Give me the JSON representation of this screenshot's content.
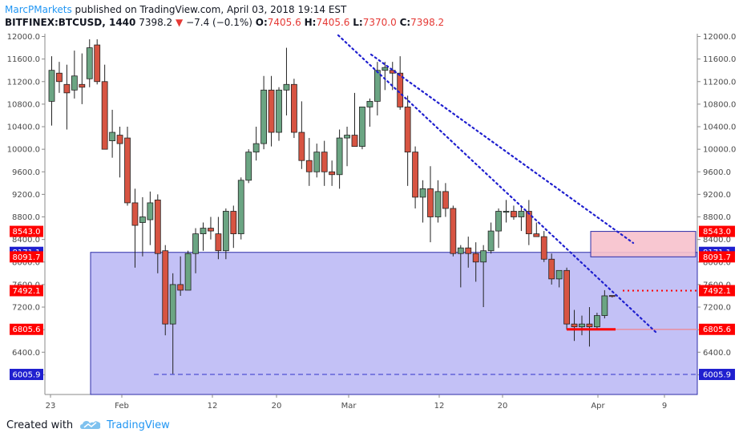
{
  "header": {
    "author": "MarcPMarkets",
    "published_text": "published on TradingView.com, April 03, 2018 19:14 EST",
    "symbol": "BITFINEX:BTCUSD, 1440",
    "last_price": "7398.2",
    "change": "−7.4 (−0.1%)",
    "o_label": "O:",
    "o_value": "7405.6",
    "h_label": "H:",
    "h_value": "7405.6",
    "l_label": "L:",
    "l_value": "7370.0",
    "c_label": "C:",
    "c_value": "7398.2"
  },
  "footer": {
    "created_with": "Created with",
    "brand": "TradingView"
  },
  "colors": {
    "up": "#6ba583",
    "down": "#d75442",
    "zone_fill": "#b8b6f5",
    "zone_border": "#2c2ca8",
    "trendline": "#1f1fcf",
    "resistance_fill": "#f7c1cc",
    "support": "#ff0000",
    "label_red": "#ff0000",
    "label_blue": "#1f1fcf"
  },
  "chart_data": {
    "type": "candlestick",
    "symbol": "BITFINEX:BTCUSD",
    "interval": "1440",
    "y_ticks": [
      "12000.0",
      "11600.0",
      "11200.0",
      "10800.0",
      "10400.0",
      "10000.0",
      "9600.0",
      "9200.0",
      "8800.0",
      "8400.0",
      "8000.0",
      "7600.0",
      "7200.0",
      "6800.0",
      "6400.0",
      "6000.0"
    ],
    "ylim": [
      5650,
      12050
    ],
    "x_tick_labels": [
      "23",
      "Feb",
      "12",
      "20",
      "Mar",
      "12",
      "20",
      "Apr",
      "9"
    ],
    "candles": [
      {
        "o": 10850,
        "h": 11650,
        "l": 10420,
        "c": 11400
      },
      {
        "o": 11350,
        "h": 11550,
        "l": 11000,
        "c": 11200
      },
      {
        "o": 11150,
        "h": 11500,
        "l": 10350,
        "c": 11000
      },
      {
        "o": 11050,
        "h": 11750,
        "l": 10900,
        "c": 11300
      },
      {
        "o": 11150,
        "h": 11700,
        "l": 10800,
        "c": 11100
      },
      {
        "o": 11250,
        "h": 11950,
        "l": 11100,
        "c": 11800
      },
      {
        "o": 11850,
        "h": 11950,
        "l": 11150,
        "c": 11200
      },
      {
        "o": 11200,
        "h": 11500,
        "l": 10000,
        "c": 10000
      },
      {
        "o": 10150,
        "h": 10700,
        "l": 9850,
        "c": 10300
      },
      {
        "o": 10250,
        "h": 10400,
        "l": 9500,
        "c": 10100
      },
      {
        "o": 10200,
        "h": 10400,
        "l": 9000,
        "c": 9050
      },
      {
        "o": 9050,
        "h": 9300,
        "l": 7900,
        "c": 8650
      },
      {
        "o": 8700,
        "h": 9150,
        "l": 8100,
        "c": 8800
      },
      {
        "o": 8750,
        "h": 9250,
        "l": 8300,
        "c": 9050
      },
      {
        "o": 9100,
        "h": 9200,
        "l": 7800,
        "c": 8150
      },
      {
        "o": 8200,
        "h": 8300,
        "l": 6700,
        "c": 6900
      },
      {
        "o": 6900,
        "h": 7800,
        "l": 6000,
        "c": 7600
      },
      {
        "o": 7600,
        "h": 8100,
        "l": 7400,
        "c": 7500
      },
      {
        "o": 7500,
        "h": 8200,
        "l": 7500,
        "c": 8150
      },
      {
        "o": 8150,
        "h": 8600,
        "l": 7800,
        "c": 8500
      },
      {
        "o": 8500,
        "h": 8700,
        "l": 8200,
        "c": 8600
      },
      {
        "o": 8600,
        "h": 8800,
        "l": 8400,
        "c": 8550
      },
      {
        "o": 8500,
        "h": 8800,
        "l": 8050,
        "c": 8200
      },
      {
        "o": 8200,
        "h": 8950,
        "l": 8050,
        "c": 8900
      },
      {
        "o": 8900,
        "h": 9000,
        "l": 8250,
        "c": 8500
      },
      {
        "o": 8500,
        "h": 9500,
        "l": 8400,
        "c": 9450
      },
      {
        "o": 9450,
        "h": 10000,
        "l": 9400,
        "c": 9950
      },
      {
        "o": 9950,
        "h": 10400,
        "l": 9800,
        "c": 10100
      },
      {
        "o": 10100,
        "h": 11300,
        "l": 10000,
        "c": 11050
      },
      {
        "o": 11050,
        "h": 11300,
        "l": 10050,
        "c": 10300
      },
      {
        "o": 10300,
        "h": 11100,
        "l": 10150,
        "c": 11050
      },
      {
        "o": 11050,
        "h": 11800,
        "l": 10600,
        "c": 11150
      },
      {
        "o": 11150,
        "h": 11250,
        "l": 10200,
        "c": 10300
      },
      {
        "o": 10300,
        "h": 10850,
        "l": 9650,
        "c": 9800
      },
      {
        "o": 9800,
        "h": 10200,
        "l": 9350,
        "c": 9600
      },
      {
        "o": 9600,
        "h": 10100,
        "l": 9500,
        "c": 9950
      },
      {
        "o": 9950,
        "h": 10150,
        "l": 9350,
        "c": 9600
      },
      {
        "o": 9600,
        "h": 9800,
        "l": 9350,
        "c": 9550
      },
      {
        "o": 9550,
        "h": 10350,
        "l": 9300,
        "c": 10200
      },
      {
        "o": 10200,
        "h": 10400,
        "l": 9700,
        "c": 10250
      },
      {
        "o": 10250,
        "h": 11000,
        "l": 10100,
        "c": 10050
      },
      {
        "o": 10050,
        "h": 10750,
        "l": 10000,
        "c": 10750
      },
      {
        "o": 10750,
        "h": 10900,
        "l": 10400,
        "c": 10850
      },
      {
        "o": 10850,
        "h": 11550,
        "l": 10600,
        "c": 11400
      },
      {
        "o": 11400,
        "h": 11550,
        "l": 11050,
        "c": 11450
      },
      {
        "o": 11400,
        "h": 11550,
        "l": 11050,
        "c": 11350
      },
      {
        "o": 11350,
        "h": 11650,
        "l": 10700,
        "c": 10750
      },
      {
        "o": 10750,
        "h": 10950,
        "l": 9350,
        "c": 9950
      },
      {
        "o": 9950,
        "h": 10050,
        "l": 8950,
        "c": 9150
      },
      {
        "o": 9150,
        "h": 9450,
        "l": 8700,
        "c": 9300
      },
      {
        "o": 9300,
        "h": 9700,
        "l": 8350,
        "c": 8800
      },
      {
        "o": 8800,
        "h": 9450,
        "l": 8700,
        "c": 9250
      },
      {
        "o": 9250,
        "h": 9400,
        "l": 8800,
        "c": 8950
      },
      {
        "o": 8950,
        "h": 9000,
        "l": 8100,
        "c": 8150
      },
      {
        "o": 8150,
        "h": 8300,
        "l": 7550,
        "c": 8250
      },
      {
        "o": 8250,
        "h": 8450,
        "l": 7900,
        "c": 8150
      },
      {
        "o": 8150,
        "h": 8350,
        "l": 7650,
        "c": 8000
      },
      {
        "o": 8000,
        "h": 8300,
        "l": 7200,
        "c": 8200
      },
      {
        "o": 8200,
        "h": 8700,
        "l": 8150,
        "c": 8550
      },
      {
        "o": 8550,
        "h": 8950,
        "l": 8250,
        "c": 8900
      },
      {
        "o": 8900,
        "h": 9100,
        "l": 8700,
        "c": 8900
      },
      {
        "o": 8900,
        "h": 9000,
        "l": 8750,
        "c": 8800
      },
      {
        "o": 8800,
        "h": 9000,
        "l": 8550,
        "c": 8900
      },
      {
        "o": 8900,
        "h": 9100,
        "l": 8300,
        "c": 8500
      },
      {
        "o": 8500,
        "h": 8700,
        "l": 8450,
        "c": 8450
      },
      {
        "o": 8450,
        "h": 8550,
        "l": 8000,
        "c": 8050
      },
      {
        "o": 8050,
        "h": 8150,
        "l": 7600,
        "c": 7700
      },
      {
        "o": 7700,
        "h": 7850,
        "l": 7550,
        "c": 7850
      },
      {
        "o": 7850,
        "h": 7900,
        "l": 6800,
        "c": 6900
      },
      {
        "o": 6900,
        "h": 7150,
        "l": 6600,
        "c": 6850
      },
      {
        "o": 6850,
        "h": 7050,
        "l": 6700,
        "c": 6900
      },
      {
        "o": 6900,
        "h": 7200,
        "l": 6500,
        "c": 6850
      },
      {
        "o": 6850,
        "h": 7100,
        "l": 6800,
        "c": 7050
      },
      {
        "o": 7050,
        "h": 7500,
        "l": 7000,
        "c": 7400
      },
      {
        "o": 7405.6,
        "h": 7405.6,
        "l": 7370.0,
        "c": 7398.2
      }
    ],
    "price_labels": [
      {
        "value": "8543.0",
        "price": 8543.0,
        "color": "red"
      },
      {
        "value": "8171.1",
        "price": 8171.1,
        "color": "blue"
      },
      {
        "value": "8091.7",
        "price": 8091.7,
        "color": "red"
      },
      {
        "value": "7492.1",
        "price": 7492.1,
        "color": "red"
      },
      {
        "value": "6805.6",
        "price": 6805.6,
        "color": "red"
      },
      {
        "value": "6005.9",
        "price": 6005.9,
        "color": "blue"
      }
    ],
    "zones": {
      "demand_zone": {
        "top": 8171.1,
        "bottom": 5650
      },
      "resistance_box": {
        "top": 8543.0,
        "bottom": 8091.7
      }
    },
    "levels": {
      "support": 6805.6,
      "low_dashed": 6005.9,
      "target": 7492.1
    }
  }
}
